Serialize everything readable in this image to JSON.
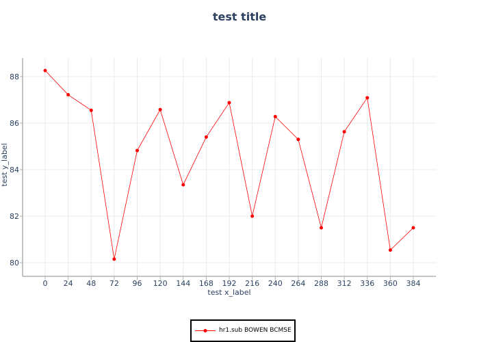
{
  "chart_data": {
    "type": "line",
    "title": "test title",
    "xlabel": "test x_label",
    "ylabel": "test y_label",
    "x": [
      0,
      24,
      48,
      72,
      96,
      120,
      144,
      168,
      192,
      216,
      240,
      264,
      288,
      312,
      336,
      360,
      384
    ],
    "series": [
      {
        "name": "hr1.sub BOWEN BCMSE",
        "values": [
          88.26,
          87.22,
          86.55,
          80.15,
          84.82,
          86.58,
          83.35,
          85.4,
          86.88,
          82.0,
          86.28,
          85.3,
          81.5,
          85.63,
          87.09,
          80.54,
          81.5
        ],
        "color": "#ff0000",
        "marker": "circle"
      }
    ],
    "xticks": [
      0,
      24,
      48,
      72,
      96,
      120,
      144,
      168,
      192,
      216,
      240,
      264,
      288,
      312,
      336,
      360,
      384
    ],
    "yticks": [
      80,
      82,
      84,
      86,
      88
    ],
    "xlim": [
      -28,
      408
    ],
    "ylim": [
      79.4,
      88.8
    ],
    "grid": true,
    "legend_position": "bottom-center"
  }
}
